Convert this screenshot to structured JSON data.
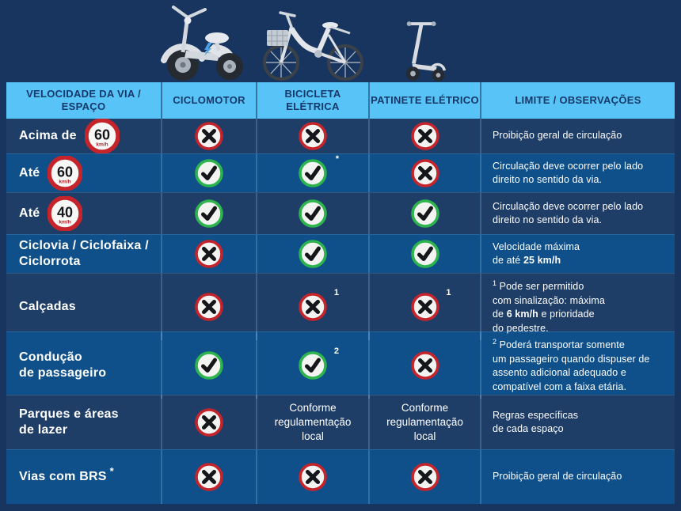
{
  "colors": {
    "page_bg": "#17355e",
    "row_dark": "#1e3d67",
    "row_light": "#0f508a",
    "header_bg": "#57c3f7",
    "header_text": "#17396a",
    "red_ring": "#c5242b",
    "green_ring": "#2eb44d",
    "icon_face": "#f3f3f1",
    "icon_glyph": "#15161a",
    "sign_unit_color": "#b02026",
    "text": "#ffffff"
  },
  "icons": {
    "allowed": {
      "name": "check-icon",
      "glyph": "✓"
    },
    "prohibited": {
      "name": "cross-icon",
      "glyph": "✗"
    }
  },
  "vehicle_images": [
    "ciclomotor-image",
    "bicicleta-eletrica-image",
    "patinete-eletrico-image"
  ],
  "table": {
    "columns": [
      "VELOCIDADE DA VIA /\nESPAÇO",
      "CICLOMOTOR",
      "BICICLETA\nELÉTRICA",
      "PATINETE ELÉTRICO",
      "LIMITE / OBSERVAÇÕES"
    ],
    "rows": [
      {
        "label": "Acima de",
        "sign": {
          "value": "60",
          "unit": "km/h"
        },
        "cells": [
          {
            "icon": "no"
          },
          {
            "icon": "no"
          },
          {
            "icon": "no"
          }
        ],
        "obs": [
          {
            "t": "Proibição geral de circulação"
          }
        ]
      },
      {
        "label": "Até",
        "sign": {
          "value": "60",
          "unit": "km/h"
        },
        "cells": [
          {
            "icon": "yes"
          },
          {
            "icon": "yes",
            "sup": "*"
          },
          {
            "icon": "no"
          }
        ],
        "obs": [
          {
            "t": "Circulação deve ocorrer pelo lado\ndireito no sentido da via."
          }
        ]
      },
      {
        "label": "Até",
        "sign": {
          "value": "40",
          "unit": "km/h"
        },
        "cells": [
          {
            "icon": "yes"
          },
          {
            "icon": "yes"
          },
          {
            "icon": "yes"
          }
        ],
        "obs": [
          {
            "t": "Circulação deve ocorrer pelo lado\ndireito no sentido da via."
          }
        ]
      },
      {
        "label": "Ciclovia / Ciclofaixa /\nCiclorrota",
        "cells": [
          {
            "icon": "no"
          },
          {
            "icon": "yes"
          },
          {
            "icon": "yes"
          }
        ],
        "obs": [
          {
            "t": "Velocidade máxima\nde até "
          },
          {
            "t": "25 km/h",
            "b": true
          }
        ]
      },
      {
        "label": "Calçadas",
        "cells": [
          {
            "icon": "no"
          },
          {
            "icon": "no",
            "sup": "1"
          },
          {
            "icon": "no",
            "sup": "1"
          }
        ],
        "obs": [
          {
            "t": "1",
            "sup": true
          },
          {
            "t": " Pode ser permitido\ncom sinalização: máxima\nde "
          },
          {
            "t": "6 km/h",
            "b": true
          },
          {
            "t": " e prioridade\ndo pedestre."
          }
        ]
      },
      {
        "label": "Condução\nde passageiro",
        "cells": [
          {
            "icon": "yes"
          },
          {
            "icon": "yes",
            "sup": "2"
          },
          {
            "icon": "no"
          }
        ],
        "obs": [
          {
            "t": "2",
            "sup": true
          },
          {
            "t": " Poderá transportar somente\num passageiro quando dispuser de\nassento adicional adequado e\ncompatível com a faixa etária."
          }
        ]
      },
      {
        "label": "Parques e áreas\nde lazer",
        "cells": [
          {
            "icon": "no"
          },
          {
            "text": "Conforme\nregulamentação\nlocal"
          },
          {
            "text": "Conforme\nregulamentação\nlocal"
          }
        ],
        "obs": [
          {
            "t": "Regras específicas\nde cada espaço"
          }
        ]
      },
      {
        "label": "Vias com BRS",
        "label_sup": "*",
        "cells": [
          {
            "icon": "no"
          },
          {
            "icon": "no"
          },
          {
            "icon": "no"
          }
        ],
        "obs": [
          {
            "t": "Proibição geral de circulação"
          }
        ]
      }
    ]
  }
}
